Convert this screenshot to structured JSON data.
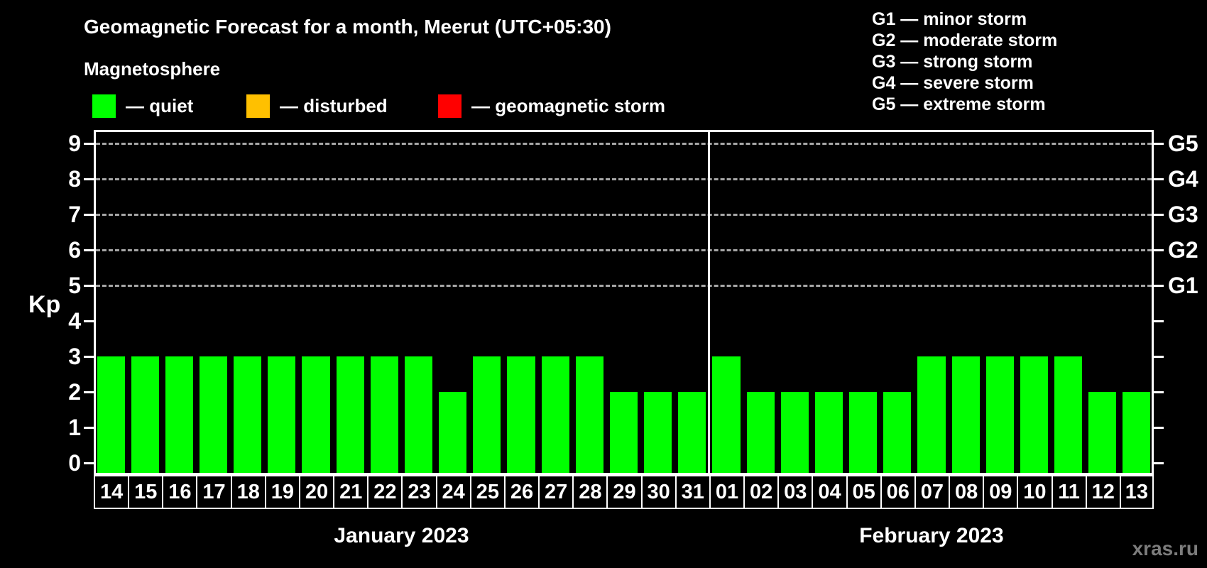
{
  "title": "Geomagnetic Forecast for a month, Meerut (UTC+05:30)",
  "subtitle": "Magnetosphere",
  "legend": {
    "items": [
      {
        "label": "— quiet",
        "color": "#00ff00"
      },
      {
        "label": "— disturbed",
        "color": "#ffc000"
      },
      {
        "label": "— geomagnetic storm",
        "color": "#ff0000"
      }
    ]
  },
  "storm_scale": [
    "G1 — minor storm",
    "G2 — moderate storm",
    "G3 — strong storm",
    "G4 — severe storm",
    "G5 — extreme storm"
  ],
  "watermark": "xras.ru",
  "chart_data": {
    "type": "bar",
    "title": "Geomagnetic Forecast for a month, Meerut (UTC+05:30)",
    "ylabel": "Kp",
    "ylim": [
      0,
      9
    ],
    "yticks": [
      0,
      1,
      2,
      3,
      4,
      5,
      6,
      7,
      8,
      9
    ],
    "grid": "dashed lines at Kp 5-9 only",
    "legend_position": "top",
    "storm_levels": [
      {
        "kp": 5,
        "label": "G1"
      },
      {
        "kp": 6,
        "label": "G2"
      },
      {
        "kp": 7,
        "label": "G3"
      },
      {
        "kp": 8,
        "label": "G4"
      },
      {
        "kp": 9,
        "label": "G5"
      }
    ],
    "kp_colors": {
      "quiet": "#00ff00",
      "disturbed": "#ffc000",
      "storm": "#ff0000"
    },
    "months": [
      {
        "label": "January 2023",
        "categories": [
          "14",
          "15",
          "16",
          "17",
          "18",
          "19",
          "20",
          "21",
          "22",
          "23",
          "24",
          "25",
          "26",
          "27",
          "28",
          "29",
          "30",
          "31"
        ],
        "values": [
          3,
          3,
          3,
          3,
          3,
          3,
          3,
          3,
          3,
          3,
          2,
          3,
          3,
          3,
          3,
          2,
          2,
          2
        ]
      },
      {
        "label": "February 2023",
        "categories": [
          "01",
          "02",
          "03",
          "04",
          "05",
          "06",
          "07",
          "08",
          "09",
          "10",
          "11",
          "12",
          "13"
        ],
        "values": [
          3,
          2,
          2,
          2,
          2,
          2,
          3,
          3,
          3,
          3,
          3,
          2,
          2
        ]
      }
    ]
  }
}
